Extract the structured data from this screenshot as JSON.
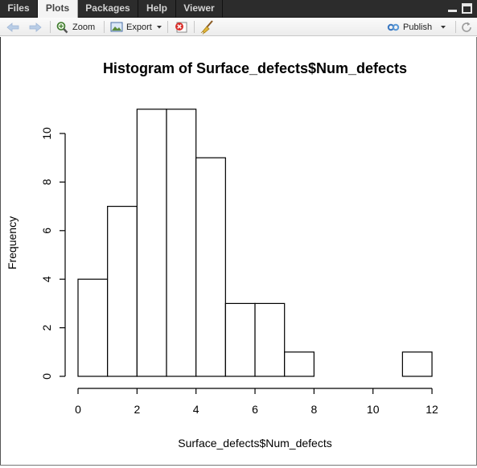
{
  "tabs": [
    {
      "label": "Files"
    },
    {
      "label": "Plots"
    },
    {
      "label": "Packages"
    },
    {
      "label": "Help"
    },
    {
      "label": "Viewer"
    }
  ],
  "active_tab": "Plots",
  "toolbar": {
    "zoom_label": "Zoom",
    "export_label": "Export",
    "publish_label": "Publish"
  },
  "colors": {
    "tabbar_bg": "#2c2c2c",
    "bar_fill": "#ffffff",
    "bar_stroke": "#000000"
  },
  "chart_data": {
    "type": "bar",
    "title": "Histogram of Surface_defects$Num_defects",
    "xlabel": "Surface_defects$Num_defects",
    "ylabel": "Frequency",
    "bins": [
      [
        0,
        1
      ],
      [
        1,
        2
      ],
      [
        2,
        3
      ],
      [
        3,
        4
      ],
      [
        4,
        5
      ],
      [
        5,
        6
      ],
      [
        6,
        7
      ],
      [
        7,
        8
      ],
      [
        8,
        9
      ],
      [
        9,
        10
      ],
      [
        10,
        11
      ],
      [
        11,
        12
      ]
    ],
    "values": [
      4,
      7,
      11,
      11,
      9,
      3,
      3,
      1,
      0,
      0,
      0,
      1
    ],
    "xlim": [
      0,
      12
    ],
    "ylim": [
      0,
      11
    ],
    "x_ticks": [
      0,
      2,
      4,
      6,
      8,
      10,
      12
    ],
    "y_ticks": [
      0,
      2,
      4,
      6,
      8,
      10
    ],
    "grid": false,
    "legend": "none"
  }
}
